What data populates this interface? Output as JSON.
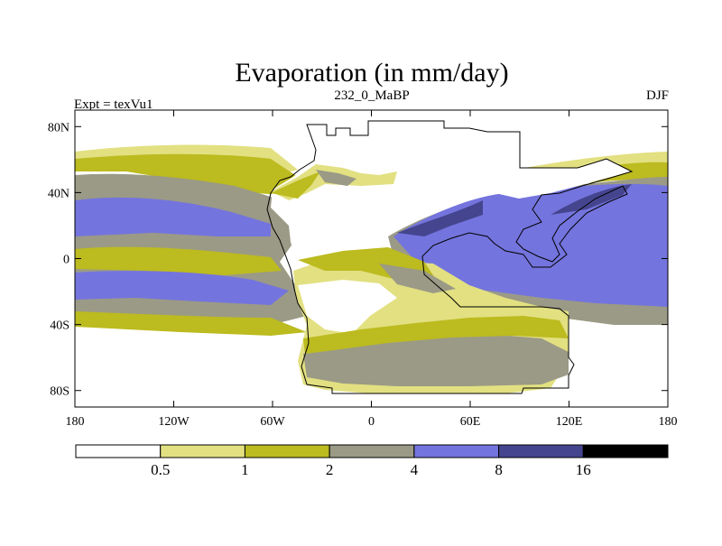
{
  "title": "Evaporation (in mm/day)",
  "left_label": "Expt = texVu1",
  "center_label": "232_0_MaBP",
  "right_label": "DJF",
  "colors": {
    "c0": "#ffffff",
    "c1": "#e2e081",
    "c2": "#bcbb1f",
    "c3": "#9b9a86",
    "c4": "#7474de",
    "c5": "#45458f",
    "c6": "#000000"
  },
  "axis": {
    "lat_ticks": [
      "80N",
      "40N",
      "0",
      "40S",
      "80S"
    ],
    "lat_values": [
      80,
      40,
      0,
      -40,
      -80
    ],
    "lon_ticks": [
      "180",
      "120W",
      "60W",
      "0",
      "60E",
      "120E",
      "180"
    ],
    "lon_values": [
      -180,
      -120,
      -60,
      0,
      60,
      120,
      180
    ],
    "lat_range": [
      -90,
      90
    ],
    "lon_range": [
      -180,
      180
    ]
  },
  "colorbar": {
    "bounds": [
      "0.5",
      "1",
      "2",
      "4",
      "8",
      "16"
    ],
    "bound_values": [
      0.5,
      1,
      2,
      4,
      8,
      16
    ],
    "fill_keys": [
      "c0",
      "c1",
      "c2",
      "c3",
      "c4",
      "c5",
      "c6"
    ]
  }
}
